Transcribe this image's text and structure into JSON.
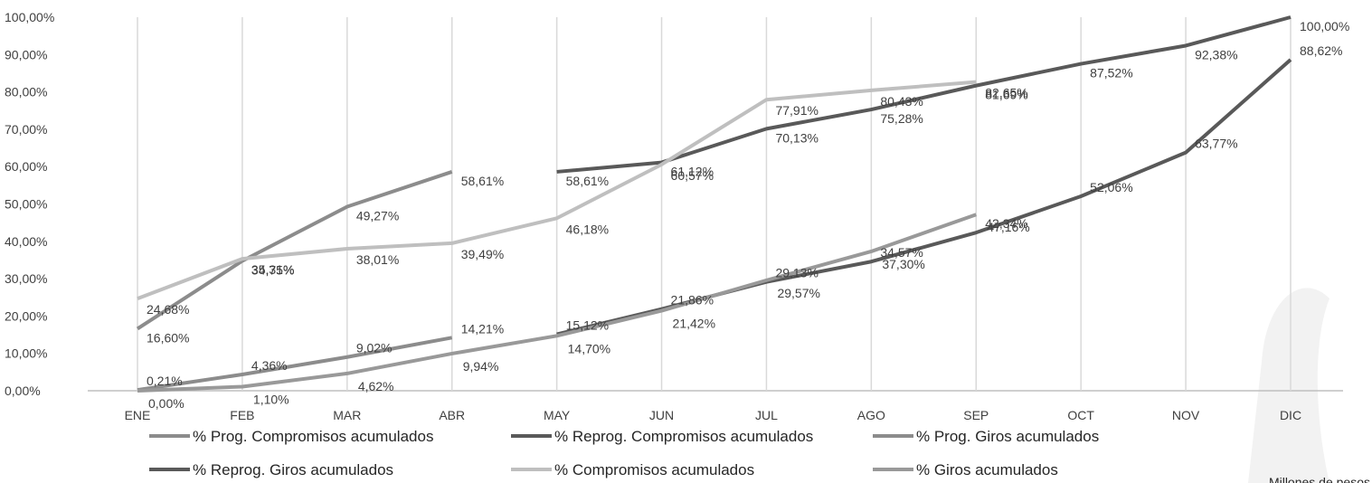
{
  "chart_data": {
    "type": "line",
    "categories": [
      "ENE",
      "FEB",
      "MAR",
      "ABR",
      "MAY",
      "JUN",
      "JUL",
      "AGO",
      "SEP",
      "OCT",
      "NOV",
      "DIC"
    ],
    "ylim": [
      0,
      100
    ],
    "yticks": [
      {
        "value": 0,
        "label": "0,00%"
      },
      {
        "value": 10,
        "label": "10,00%"
      },
      {
        "value": 20,
        "label": "20,00%"
      },
      {
        "value": 30,
        "label": "30,00%"
      },
      {
        "value": 40,
        "label": "40,00%"
      },
      {
        "value": 50,
        "label": "50,00%"
      },
      {
        "value": 60,
        "label": "60,00%"
      },
      {
        "value": 70,
        "label": "70,00%"
      },
      {
        "value": 80,
        "label": "80,00%"
      },
      {
        "value": 90,
        "label": "90,00%"
      },
      {
        "value": 100,
        "label": "100,00%"
      }
    ],
    "grid": true,
    "note": "Millones de pesos",
    "series": [
      {
        "name": "% Prog. Compromisos acumulados",
        "color": "#8c8c8c",
        "values": [
          16.6,
          34.75,
          49.27,
          58.61,
          null,
          null,
          null,
          null,
          null,
          null,
          null,
          null
        ],
        "value_labels": [
          "16,60%",
          "34,75%",
          "49,27%",
          "58,61%",
          null,
          null,
          null,
          null,
          null,
          null,
          null,
          null
        ]
      },
      {
        "name": "% Reprog. Compromisos acumulados",
        "color": "#595959",
        "values": [
          null,
          null,
          null,
          null,
          58.61,
          61.12,
          70.13,
          75.28,
          81.69,
          87.52,
          92.38,
          100.0
        ],
        "value_labels": [
          null,
          null,
          null,
          null,
          "58,61%",
          "61,12%",
          "70,13%",
          "75,28%",
          "81,69%",
          "87,52%",
          "92,38%",
          "100,00%"
        ]
      },
      {
        "name": "% Prog. Giros acumulados",
        "color": "#8c8c8c",
        "values": [
          0.21,
          4.36,
          9.02,
          14.21,
          null,
          null,
          null,
          null,
          null,
          null,
          null,
          null
        ],
        "value_labels": [
          "0,21%",
          "4,36%",
          "9,02%",
          "14,21%",
          null,
          null,
          null,
          null,
          null,
          null,
          null,
          null
        ]
      },
      {
        "name": "% Reprog. Giros acumulados",
        "color": "#595959",
        "values": [
          null,
          null,
          null,
          null,
          15.12,
          21.86,
          29.13,
          34.57,
          42.34,
          52.06,
          63.77,
          88.62
        ],
        "value_labels": [
          null,
          null,
          null,
          null,
          "15,12%",
          "21,86%",
          "29,13%",
          "34,57%",
          "42,34%",
          "52,06%",
          "63,77%",
          "88,62%"
        ]
      },
      {
        "name": "% Compromisos acumulados",
        "color": "#bfbfbf",
        "values": [
          24.68,
          35.31,
          38.01,
          39.49,
          46.18,
          60.57,
          77.91,
          80.43,
          82.65,
          null,
          null,
          null
        ],
        "value_labels": [
          "24,68%",
          "35,31%",
          "38,01%",
          "39,49%",
          "46,18%",
          "60,57%",
          "77,91%",
          "80,43%",
          "82,65%",
          null,
          null,
          null
        ]
      },
      {
        "name": "% Giros acumulados",
        "color": "#999999",
        "values": [
          0.0,
          1.1,
          4.62,
          9.94,
          14.7,
          21.42,
          29.57,
          37.3,
          47.16,
          null,
          null,
          null
        ],
        "value_labels": [
          "0,00%",
          "1,10%",
          "4,62%",
          "9,94%",
          "14,70%",
          "21,42%",
          "29,57%",
          "37,30%",
          "47,16%",
          null,
          null,
          null
        ]
      }
    ]
  }
}
